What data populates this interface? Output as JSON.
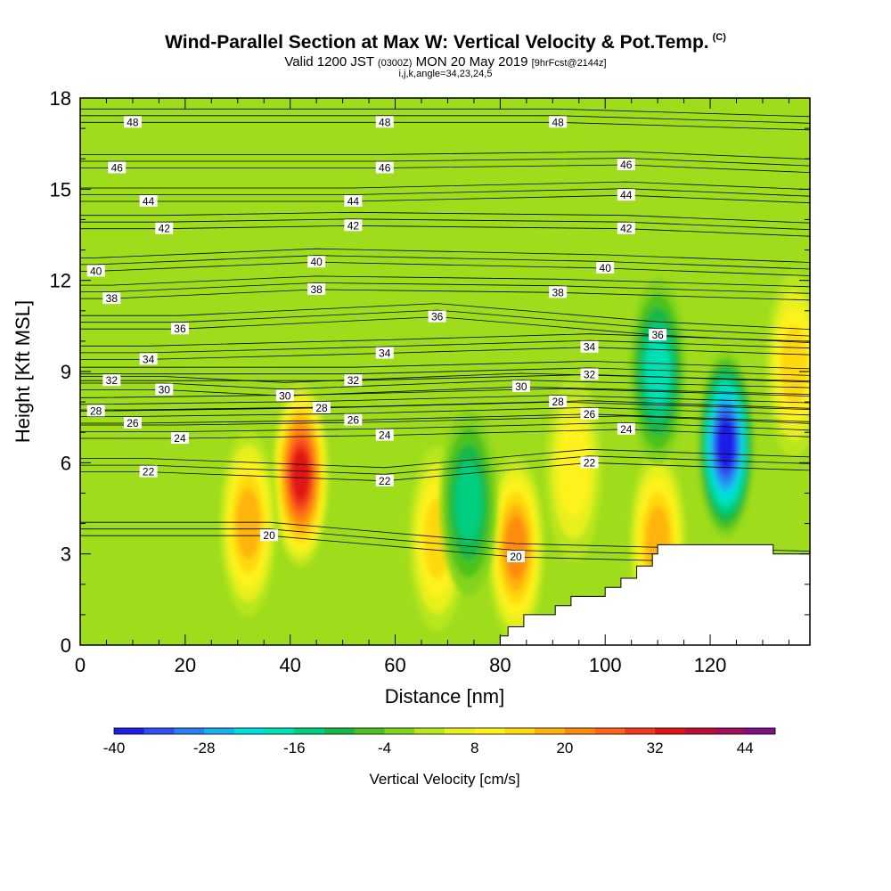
{
  "chart_data": {
    "type": "heatmap",
    "title": "Wind-Parallel Section at Max W: Vertical Velocity & Pot.Temp.",
    "title_mark": "(C)",
    "subtitle_main": "Valid 1200 JST",
    "subtitle_utc": "(0300Z)",
    "subtitle_date": "MON 20 May 2019",
    "subtitle_fcst": "[9hrFcst@2144z]",
    "subtitle2": "i,j,k,angle=34,23,24,5",
    "xlabel": "Distance [nm]",
    "ylabel": "Height [Kft MSL]",
    "xlim": [
      0,
      139
    ],
    "ylim": [
      0,
      18
    ],
    "xticks": [
      "0",
      "20",
      "40",
      "60",
      "80",
      "100",
      "120"
    ],
    "yticks": [
      "0",
      "3",
      "6",
      "9",
      "12",
      "15",
      "18"
    ],
    "colorbar": {
      "label": "Vertical Velocity [cm/s]",
      "ticks": [
        "-40",
        "-28",
        "-16",
        "-4",
        "8",
        "20",
        "32",
        "44"
      ],
      "range": [
        -40,
        48
      ],
      "step": 4,
      "colors": [
        "#1f1fe6",
        "#2e4ff2",
        "#2a80f0",
        "#1ab0f0",
        "#00dede",
        "#00e0b5",
        "#00cf80",
        "#17b84a",
        "#4cc21f",
        "#82d41a",
        "#b8e61f",
        "#e8f01f",
        "#fff21a",
        "#ffd90f",
        "#ffb30a",
        "#ff8c0f",
        "#ff6619",
        "#f03c1a",
        "#e01414",
        "#bf0f33",
        "#a00f5c",
        "#800f80"
      ]
    },
    "vertical_velocity_cells": {
      "description_units": "cm/s",
      "features": [
        {
          "x": 42,
          "y": 5.6,
          "value": 34
        },
        {
          "x": 32,
          "y": 4.0,
          "value": 18
        },
        {
          "x": 68,
          "y": 3.5,
          "value": 14
        },
        {
          "x": 83,
          "y": 3.2,
          "value": 22
        },
        {
          "x": 94,
          "y": 5.8,
          "value": 12
        },
        {
          "x": 110,
          "y": 3.4,
          "value": 18
        },
        {
          "x": 74,
          "y": 4.7,
          "value": -14
        },
        {
          "x": 123,
          "y": 6.6,
          "value": -38
        },
        {
          "x": 136,
          "y": 9.2,
          "value": 14
        },
        {
          "x": 110,
          "y": 9.0,
          "value": -20
        }
      ]
    },
    "potential_temperature_labels": [
      {
        "text": "48",
        "x": 10,
        "y": 17.2
      },
      {
        "text": "48",
        "x": 58,
        "y": 17.2
      },
      {
        "text": "48",
        "x": 91,
        "y": 17.2
      },
      {
        "text": "46",
        "x": 7,
        "y": 15.7
      },
      {
        "text": "46",
        "x": 58,
        "y": 15.7
      },
      {
        "text": "46",
        "x": 104,
        "y": 15.8
      },
      {
        "text": "44",
        "x": 13,
        "y": 14.6
      },
      {
        "text": "44",
        "x": 52,
        "y": 14.6
      },
      {
        "text": "44",
        "x": 104,
        "y": 14.8
      },
      {
        "text": "42",
        "x": 16,
        "y": 13.7
      },
      {
        "text": "42",
        "x": 52,
        "y": 13.8
      },
      {
        "text": "42",
        "x": 104,
        "y": 13.7
      },
      {
        "text": "40",
        "x": 3,
        "y": 12.3
      },
      {
        "text": "40",
        "x": 45,
        "y": 12.6
      },
      {
        "text": "40",
        "x": 100,
        "y": 12.4
      },
      {
        "text": "38",
        "x": 6,
        "y": 11.4
      },
      {
        "text": "38",
        "x": 45,
        "y": 11.7
      },
      {
        "text": "38",
        "x": 91,
        "y": 11.6
      },
      {
        "text": "36",
        "x": 19,
        "y": 10.4
      },
      {
        "text": "36",
        "x": 68,
        "y": 10.8
      },
      {
        "text": "36",
        "x": 110,
        "y": 10.2
      },
      {
        "text": "34",
        "x": 13,
        "y": 9.4
      },
      {
        "text": "34",
        "x": 58,
        "y": 9.6
      },
      {
        "text": "34",
        "x": 97,
        "y": 9.8
      },
      {
        "text": "32",
        "x": 6,
        "y": 8.7
      },
      {
        "text": "32",
        "x": 52,
        "y": 8.7
      },
      {
        "text": "32",
        "x": 97,
        "y": 8.9
      },
      {
        "text": "30",
        "x": 16,
        "y": 8.4
      },
      {
        "text": "30",
        "x": 39,
        "y": 8.2
      },
      {
        "text": "30",
        "x": 84,
        "y": 8.5
      },
      {
        "text": "28",
        "x": 3,
        "y": 7.7
      },
      {
        "text": "28",
        "x": 46,
        "y": 7.8
      },
      {
        "text": "28",
        "x": 91,
        "y": 8.0
      },
      {
        "text": "26",
        "x": 10,
        "y": 7.3
      },
      {
        "text": "26",
        "x": 52,
        "y": 7.4
      },
      {
        "text": "26",
        "x": 97,
        "y": 7.6
      },
      {
        "text": "24",
        "x": 19,
        "y": 6.8
      },
      {
        "text": "24",
        "x": 58,
        "y": 6.9
      },
      {
        "text": "24",
        "x": 104,
        "y": 7.1
      },
      {
        "text": "22",
        "x": 13,
        "y": 5.7
      },
      {
        "text": "22",
        "x": 58,
        "y": 5.4
      },
      {
        "text": "22",
        "x": 97,
        "y": 6.0
      },
      {
        "text": "20",
        "x": 36,
        "y": 3.6
      },
      {
        "text": "20",
        "x": 83,
        "y": 2.9
      }
    ],
    "terrain_profile": [
      {
        "x": 80,
        "y": 0
      },
      {
        "x": 80,
        "y": 0.3
      },
      {
        "x": 81.5,
        "y": 0.3
      },
      {
        "x": 81.5,
        "y": 0.6
      },
      {
        "x": 84.5,
        "y": 0.6
      },
      {
        "x": 84.5,
        "y": 1.0
      },
      {
        "x": 90.5,
        "y": 1.0
      },
      {
        "x": 90.5,
        "y": 1.3
      },
      {
        "x": 93.5,
        "y": 1.3
      },
      {
        "x": 93.5,
        "y": 1.6
      },
      {
        "x": 100,
        "y": 1.6
      },
      {
        "x": 100,
        "y": 1.9
      },
      {
        "x": 103,
        "y": 1.9
      },
      {
        "x": 103,
        "y": 2.2
      },
      {
        "x": 106,
        "y": 2.2
      },
      {
        "x": 106,
        "y": 2.6
      },
      {
        "x": 109,
        "y": 2.6
      },
      {
        "x": 109,
        "y": 3.0
      },
      {
        "x": 110,
        "y": 3.0
      },
      {
        "x": 110,
        "y": 3.3
      },
      {
        "x": 132,
        "y": 3.3
      },
      {
        "x": 132,
        "y": 3.0
      },
      {
        "x": 139,
        "y": 3.0
      },
      {
        "x": 139,
        "y": 0
      }
    ]
  }
}
